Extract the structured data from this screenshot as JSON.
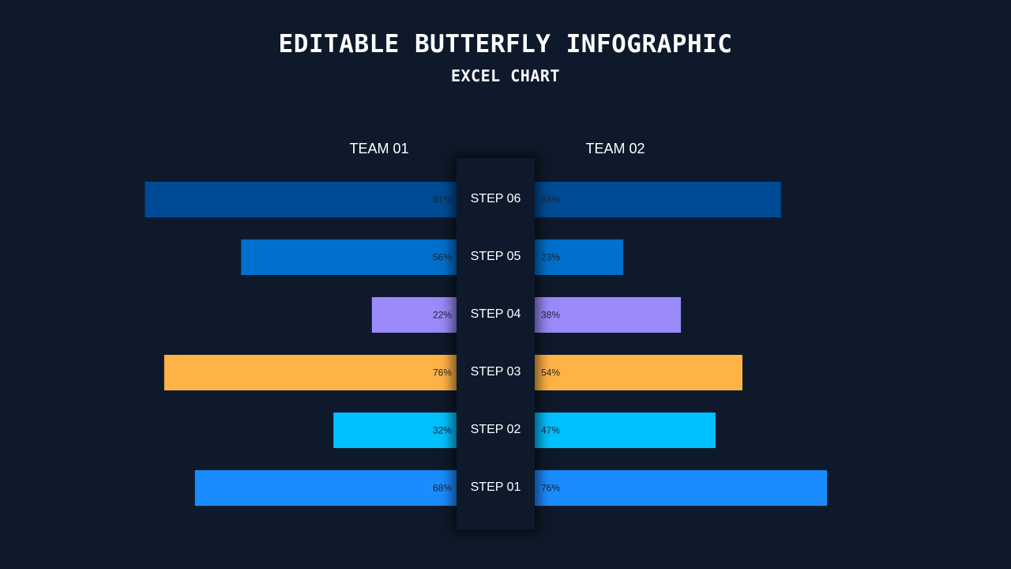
{
  "title": "EDITABLE BUTTERFLY INFOGRAPHIC",
  "subtitle": "EXCEL CHART",
  "chart_data": {
    "type": "bar",
    "orientation": "horizontal-butterfly",
    "categories": [
      "STEP 06",
      "STEP 05",
      "STEP 04",
      "STEP 03",
      "STEP 02",
      "STEP 01"
    ],
    "series": [
      {
        "name": "TEAM 01",
        "values": [
          81,
          56,
          22,
          76,
          32,
          68
        ]
      },
      {
        "name": "TEAM 02",
        "values": [
          64,
          23,
          38,
          54,
          47,
          76
        ]
      }
    ],
    "labels_left": [
      "81%",
      "56%",
      "22%",
      "76%",
      "32%",
      "68%"
    ],
    "labels_right": [
      "64%",
      "23%",
      "38%",
      "54%",
      "47%",
      "76%"
    ],
    "colors": [
      "#004b96",
      "#0070cc",
      "#9b8afa",
      "#ffb347",
      "#00c0ff",
      "#1a8cff"
    ],
    "xlim": [
      0,
      100
    ],
    "grid": false
  }
}
